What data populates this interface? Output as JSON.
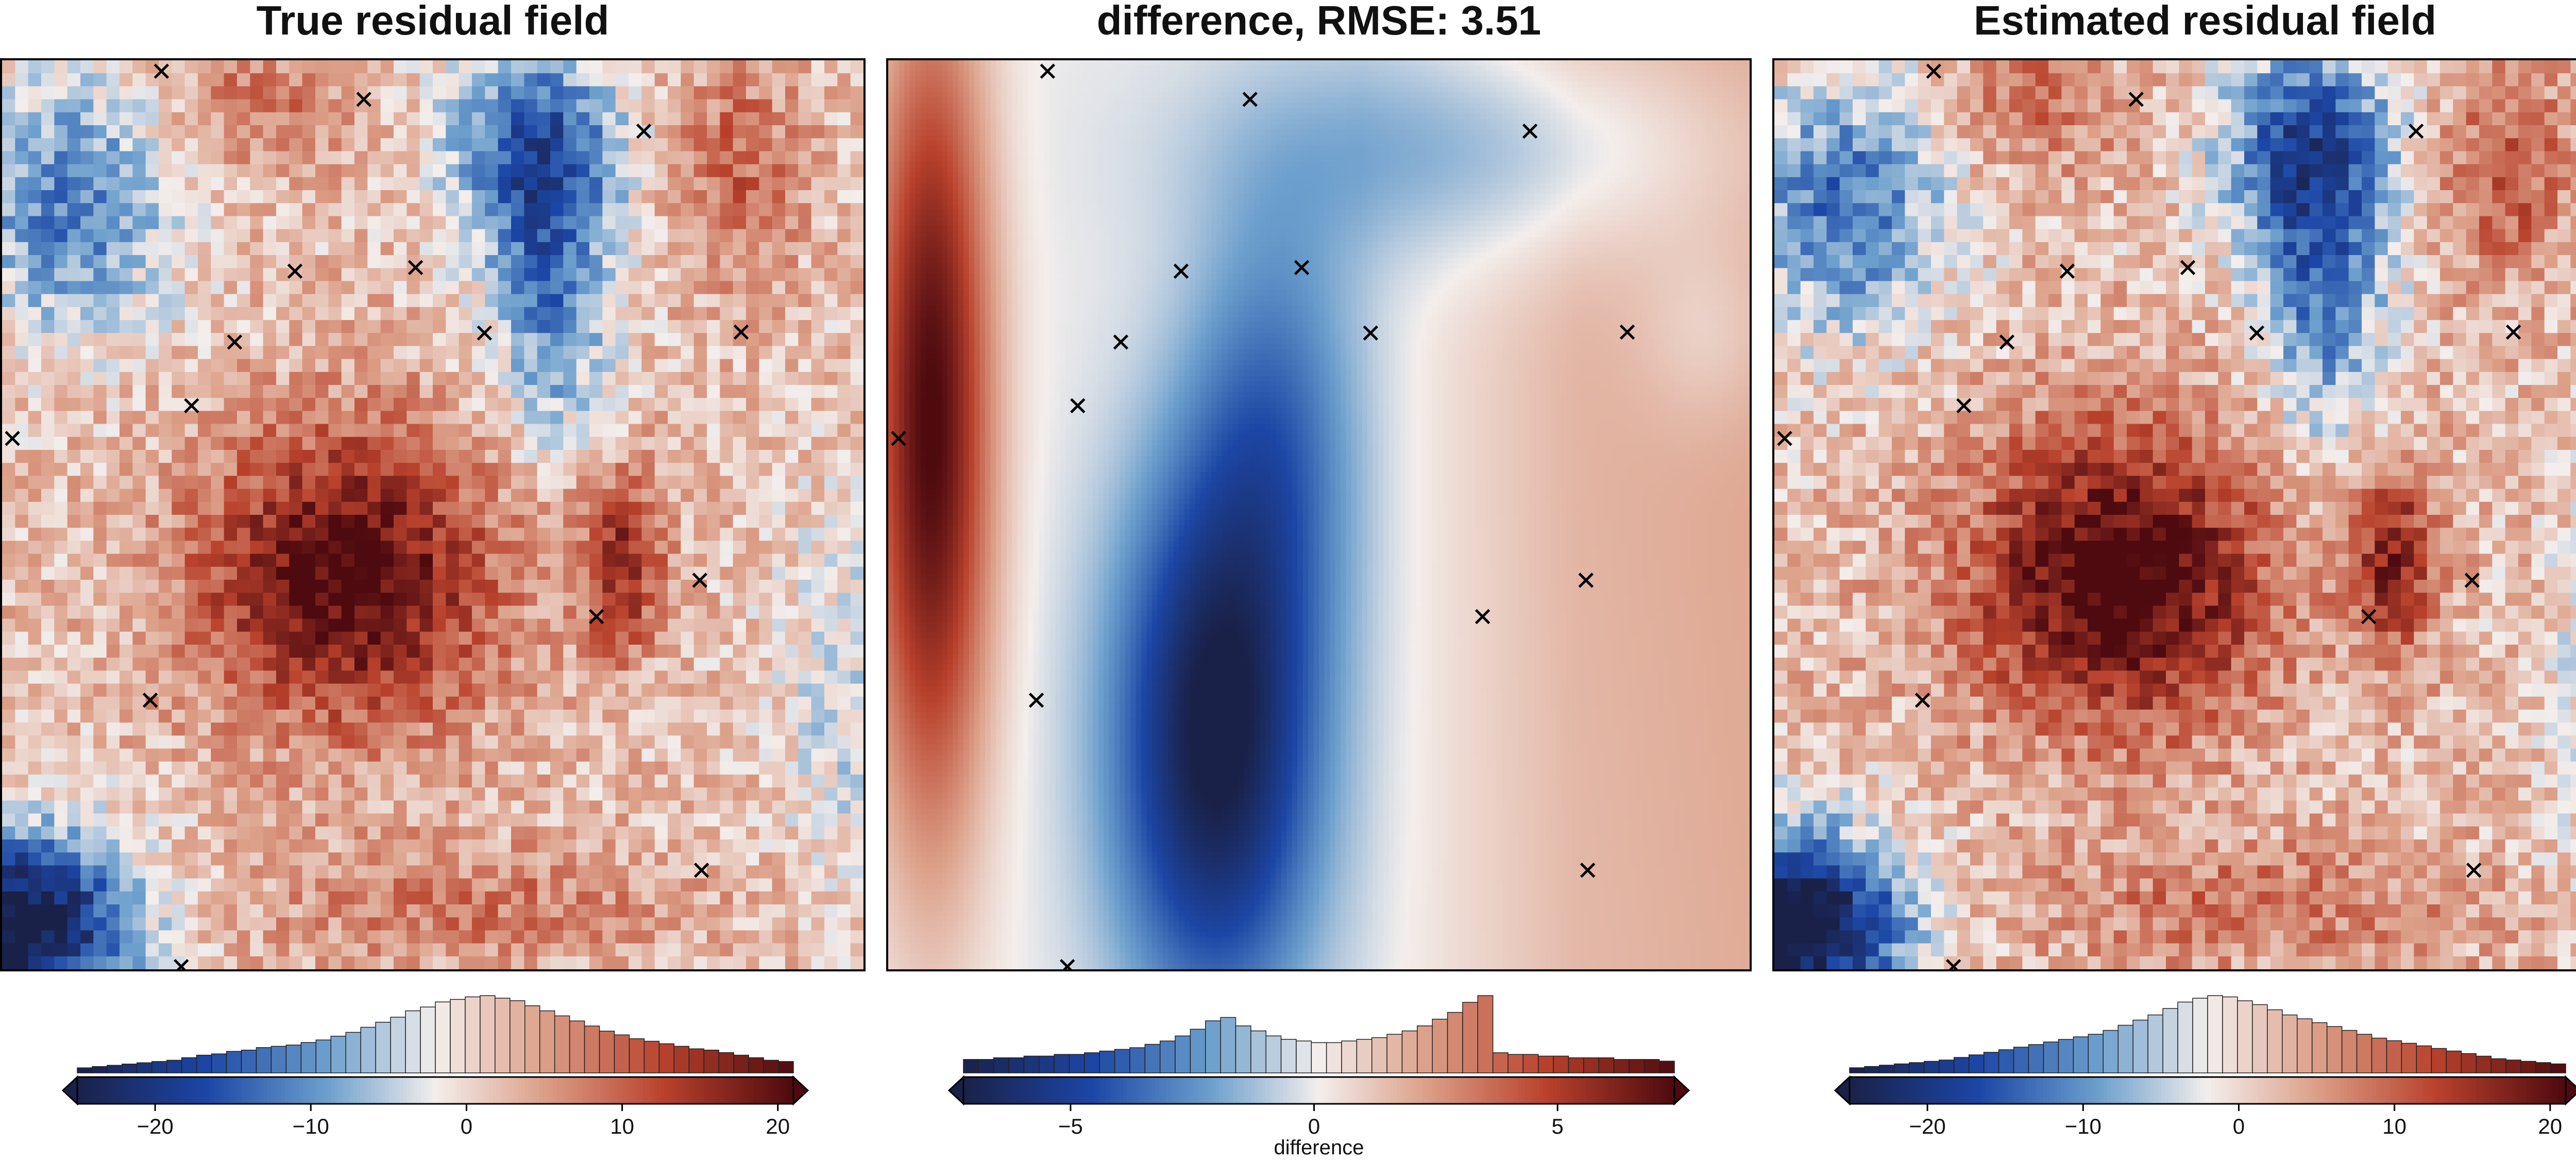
{
  "colors": {
    "dark_blue": "#1a2149",
    "blue": "#2466b8",
    "light_blue": "#8fb9d4",
    "white": "#f3eeec",
    "light_red": "#dca089",
    "red": "#b8412c",
    "dark_red": "#4e0a0f"
  },
  "panels": [
    {
      "id": "true",
      "title": "True residual field",
      "field": "residual",
      "seed": 11,
      "cbar": {
        "ticks": [
          -20,
          -10,
          0,
          10,
          20
        ],
        "tick_labels": [
          "−20",
          "−10",
          "0",
          "10",
          "20"
        ],
        "range": [
          -25,
          21
        ],
        "label": ""
      }
    },
    {
      "id": "diff",
      "title": "difference, RMSE: 3.51",
      "field": "difference",
      "seed": 0,
      "cbar": {
        "ticks": [
          -5,
          0,
          5
        ],
        "tick_labels": [
          "−5",
          "0",
          "5"
        ],
        "range": [
          -7.2,
          7.4
        ],
        "label": "difference"
      }
    },
    {
      "id": "est",
      "title": "Estimated residual field",
      "field": "residual",
      "seed": 23,
      "cbar": {
        "ticks": [
          -20,
          -10,
          0,
          10,
          20
        ],
        "tick_labels": [
          "−20",
          "−10",
          "0",
          "10",
          "20"
        ],
        "range": [
          -25,
          21
        ],
        "label": ""
      }
    }
  ],
  "chart_data": [
    {
      "type": "heatmap",
      "title": "True residual field",
      "colorbar_range": [
        -25,
        21
      ],
      "colorbar_ticks": [
        -20,
        -10,
        0,
        10,
        20
      ],
      "histogram_counts": [
        4,
        5,
        6,
        7,
        8,
        9,
        10,
        12,
        14,
        15,
        17,
        18,
        20,
        21,
        22,
        24,
        26,
        29,
        32,
        36,
        40,
        44,
        49,
        52,
        56,
        58,
        60,
        61,
        59,
        57,
        53,
        49,
        45,
        41,
        37,
        33,
        30,
        27,
        25,
        23,
        21,
        19,
        18,
        16,
        14,
        12,
        10,
        9
      ]
    },
    {
      "type": "heatmap",
      "title": "difference, RMSE: 3.51",
      "xlabel": "difference",
      "colorbar_range": [
        -7.2,
        7.4
      ],
      "colorbar_ticks": [
        -5,
        0,
        5
      ],
      "histogram_counts": [
        8,
        8,
        9,
        9,
        10,
        10,
        11,
        11,
        12,
        13,
        14,
        15,
        17,
        19,
        22,
        26,
        31,
        33,
        28,
        25,
        22,
        20,
        19,
        18,
        18,
        19,
        20,
        21,
        23,
        25,
        28,
        32,
        36,
        42,
        46,
        12,
        11,
        11,
        10,
        10,
        9,
        9,
        9,
        8,
        8,
        8,
        7
      ]
    },
    {
      "type": "heatmap",
      "title": "Estimated residual field",
      "colorbar_range": [
        -25,
        21
      ],
      "colorbar_ticks": [
        -20,
        -10,
        0,
        10,
        20
      ],
      "histogram_counts": [
        4,
        5,
        6,
        7,
        8,
        9,
        10,
        12,
        14,
        16,
        18,
        20,
        22,
        24,
        26,
        28,
        30,
        33,
        37,
        41,
        45,
        50,
        55,
        58,
        60,
        59,
        56,
        53,
        49,
        45,
        42,
        39,
        36,
        33,
        30,
        27,
        25,
        23,
        21,
        19,
        17,
        15,
        13,
        11,
        10,
        9,
        8,
        7
      ]
    }
  ]
}
